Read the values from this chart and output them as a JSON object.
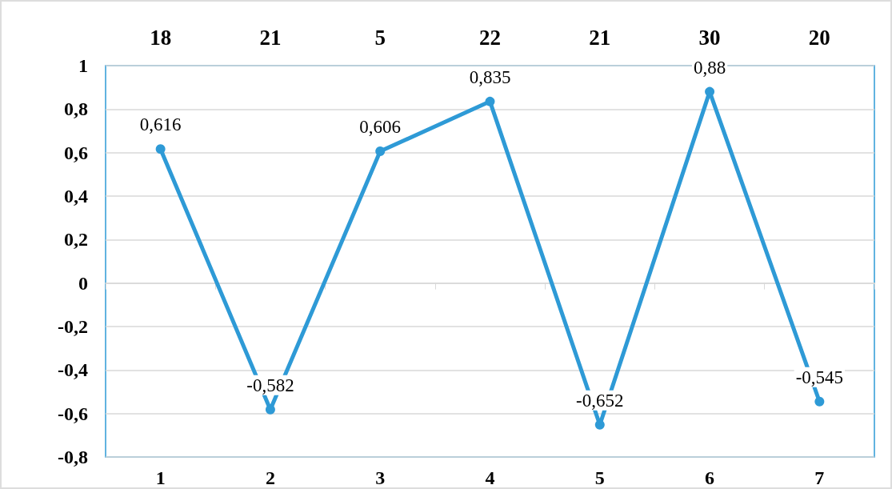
{
  "chart_data": {
    "type": "line",
    "categories": [
      "1",
      "2",
      "3",
      "4",
      "5",
      "6",
      "7"
    ],
    "series": [
      {
        "color": "#2e9ad6",
        "values": [
          0.616,
          -0.582,
          0.606,
          0.835,
          -0.652,
          0.88,
          -0.545
        ],
        "value_labels": [
          "0,616",
          "-0,582",
          "0,606",
          "0,835",
          "-0,652",
          "0,88",
          "-0,545"
        ]
      }
    ],
    "annotations": [
      "18",
      "21",
      "5",
      "22",
      "21",
      "30",
      "20"
    ],
    "ylim": [
      -0.8,
      1
    ],
    "yticks": [
      {
        "value": -0.8,
        "label": "-0,8"
      },
      {
        "value": -0.6,
        "label": "-0,6"
      },
      {
        "value": -0.4,
        "label": "-0,4"
      },
      {
        "value": -0.2,
        "label": "-0,2"
      },
      0,
      {
        "value": 0.2,
        "label": "0,2"
      },
      {
        "value": 0.4,
        "label": "0,4"
      },
      {
        "value": 0.6,
        "label": "0,6"
      },
      {
        "value": 0.8,
        "label": "0,8"
      },
      1
    ],
    "grid": "y",
    "marker": "circle",
    "line_style": "solid"
  }
}
